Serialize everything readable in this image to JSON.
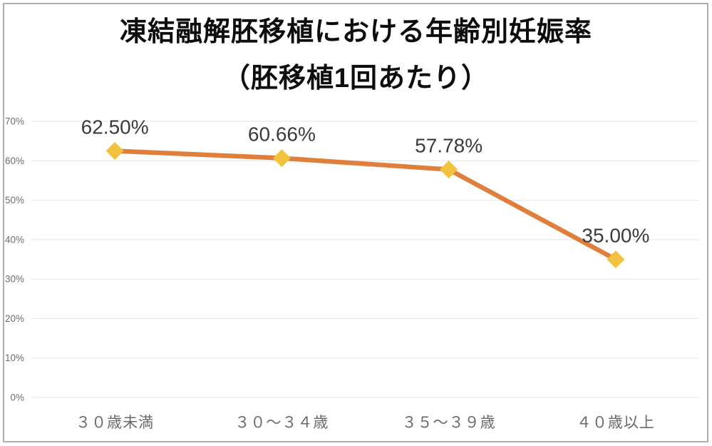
{
  "chart_data": {
    "type": "line",
    "title": "凍結融解胚移植における年齢別妊娠率",
    "subtitle": "（胚移植1回あたり）",
    "categories": [
      "３０歳未満",
      "３０～３４歳",
      "３５～３９歳",
      "４０歳以上"
    ],
    "values": [
      62.5,
      60.66,
      57.78,
      35.0
    ],
    "data_labels": [
      "62.50%",
      "60.66%",
      "57.78%",
      "35.00%"
    ],
    "y_tick_labels": [
      "0%",
      "10%",
      "20%",
      "30%",
      "40%",
      "50%",
      "60%",
      "70%"
    ],
    "ylim": [
      0,
      70
    ],
    "y_tick_step": 10,
    "grid": true,
    "legend_position": "none",
    "xlabel": "",
    "ylabel": "",
    "colors": {
      "line": "#E07E3C",
      "marker": "#F1C140",
      "data_label": "#3b3b3b",
      "axis_label": "#6a6a6a"
    },
    "marker_shape": "diamond"
  }
}
